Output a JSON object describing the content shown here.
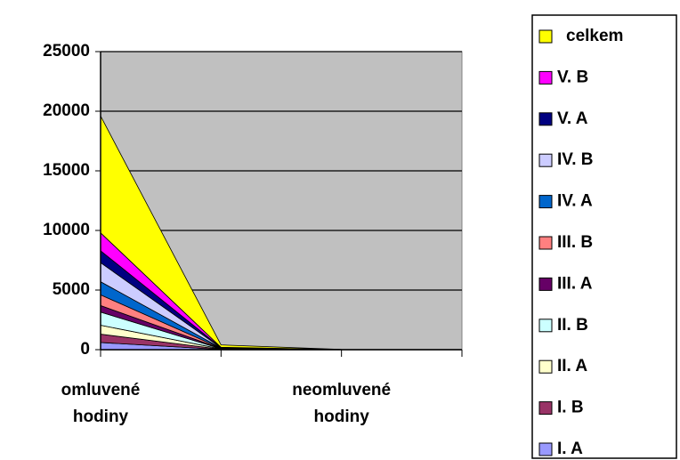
{
  "chart_data": {
    "type": "stacked-area",
    "categories": [
      "omluvené hodiny",
      null,
      "neomluvené hodiny",
      null
    ],
    "ylim": [
      0,
      25000
    ],
    "yticks": [
      0,
      5000,
      10000,
      15000,
      20000,
      25000
    ],
    "grid": true,
    "plot_background": "#c0c0c0",
    "legend": "right",
    "series": [
      {
        "name": "I. A",
        "color": "#9999ff",
        "values": [
          600,
          20,
          1,
          0
        ]
      },
      {
        "name": "I. B",
        "color": "#993366",
        "values": [
          700,
          20,
          1,
          0
        ]
      },
      {
        "name": "II. A",
        "color": "#ffffcc",
        "values": [
          750,
          20,
          1,
          0
        ]
      },
      {
        "name": "II. B",
        "color": "#ccffff",
        "values": [
          1100,
          20,
          1,
          0
        ]
      },
      {
        "name": "III. A",
        "color": "#660066",
        "values": [
          550,
          20,
          1,
          0
        ]
      },
      {
        "name": "III. B",
        "color": "#ff8080",
        "values": [
          900,
          20,
          1,
          0
        ]
      },
      {
        "name": "IV. A",
        "color": "#0066cc",
        "values": [
          1100,
          20,
          1,
          0
        ]
      },
      {
        "name": "IV. B",
        "color": "#ccccff",
        "values": [
          1600,
          20,
          1,
          0
        ]
      },
      {
        "name": "V.  A",
        "color": "#000080",
        "values": [
          1000,
          20,
          1,
          0
        ]
      },
      {
        "name": "V. B",
        "color": "#ff00ff",
        "values": [
          1500,
          20,
          1,
          0
        ]
      },
      {
        "name": "celkem",
        "color": "#ffff00",
        "values": [
          9800,
          200,
          10,
          0
        ]
      }
    ]
  }
}
